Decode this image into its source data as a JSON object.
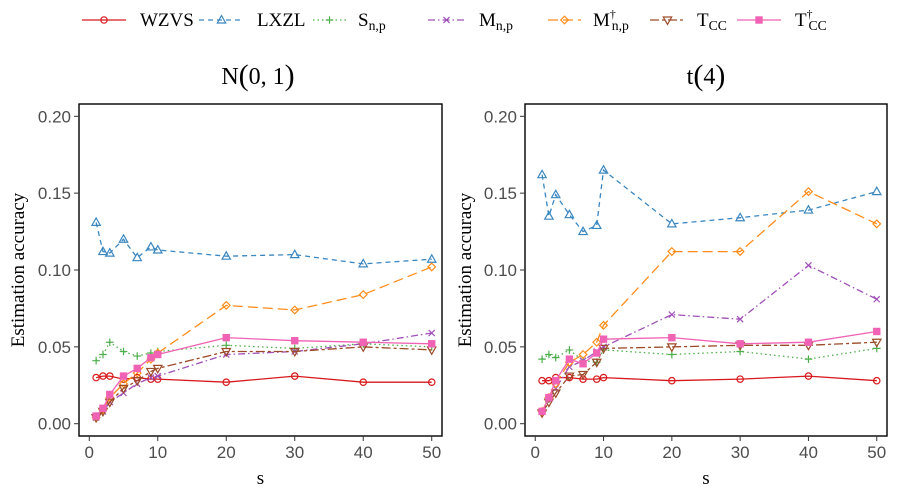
{
  "legend": {
    "placement": "top",
    "items": [
      {
        "base": "WZVS",
        "sub": "",
        "sup": "",
        "color": "#d7191c",
        "marker": "circle",
        "dash": "solid"
      },
      {
        "base": "LXZL",
        "sub": "",
        "sup": "",
        "color": "#3a87c0",
        "marker": "triangle",
        "dash": "dashed"
      },
      {
        "base": "S",
        "sub": "n,p",
        "sup": "",
        "color": "#4daf4a",
        "marker": "plus",
        "dash": "dotted"
      },
      {
        "base": "M",
        "sub": "n,p",
        "sup": "",
        "color": "#a050b8",
        "marker": "cross",
        "dash": "dashdot"
      },
      {
        "base": "M",
        "sub": "n,p",
        "sup": "†",
        "color": "#ff8c1a",
        "marker": "diamond",
        "dash": "longdash"
      },
      {
        "base": "T",
        "sub": "CC",
        "sup": "",
        "color": "#9c4a28",
        "marker": "triangle-down",
        "dash": "twodash"
      },
      {
        "base": "T",
        "sub": "CC",
        "sup": "†",
        "color": "#f062b4",
        "marker": "square",
        "dash": "solid"
      }
    ]
  },
  "chart_data": [
    {
      "type": "line",
      "title": "N(0, 1)",
      "title_parts": {
        "pre": "N",
        "open": "(",
        "inner": "0, 1",
        "close": ")"
      },
      "xlabel": "s",
      "ylabel": "Estimation accuracy",
      "xlim": [
        -1.5,
        51.5
      ],
      "ylim": [
        -0.008,
        0.208
      ],
      "xticks": [
        0,
        10,
        20,
        30,
        40,
        50
      ],
      "yticks": [
        0.0,
        0.05,
        0.1,
        0.15,
        0.2
      ],
      "ytick_labels": [
        "0.00",
        "0.05",
        "0.10",
        "0.15",
        "0.20"
      ],
      "grid": false,
      "x": [
        1,
        2,
        3,
        5,
        7,
        9,
        10,
        20,
        30,
        40,
        50
      ],
      "series": [
        {
          "name": "WZVS",
          "values": [
            0.03,
            0.031,
            0.031,
            0.029,
            0.03,
            0.029,
            0.029,
            0.027,
            0.031,
            0.027,
            0.027
          ]
        },
        {
          "name": "LXZL",
          "values": [
            0.131,
            0.112,
            0.111,
            0.12,
            0.108,
            0.115,
            0.113,
            0.109,
            0.11,
            0.104,
            0.107
          ]
        },
        {
          "name": "S_n,p",
          "values": [
            0.041,
            0.045,
            0.053,
            0.047,
            0.044,
            0.046,
            0.047,
            0.051,
            0.049,
            0.052,
            0.05
          ]
        },
        {
          "name": "M_n,p",
          "values": [
            0.004,
            0.008,
            0.014,
            0.02,
            0.026,
            0.03,
            0.031,
            0.045,
            0.047,
            0.052,
            0.059
          ]
        },
        {
          "name": "M†_n,p",
          "values": [
            0.004,
            0.009,
            0.017,
            0.026,
            0.033,
            0.042,
            0.046,
            0.077,
            0.074,
            0.084,
            0.102
          ]
        },
        {
          "name": "T_CC",
          "values": [
            0.004,
            0.008,
            0.014,
            0.023,
            0.028,
            0.034,
            0.036,
            0.047,
            0.047,
            0.05,
            0.048
          ]
        },
        {
          "name": "T†_CC",
          "values": [
            0.005,
            0.01,
            0.019,
            0.031,
            0.036,
            0.043,
            0.045,
            0.056,
            0.054,
            0.053,
            0.052
          ]
        }
      ]
    },
    {
      "type": "line",
      "title": "t(4)",
      "title_parts": {
        "pre": "t",
        "open": "(",
        "inner": "4",
        "close": ")"
      },
      "xlabel": "s",
      "ylabel": "Estimation accuracy",
      "xlim": [
        -1.5,
        51.5
      ],
      "ylim": [
        -0.008,
        0.208
      ],
      "xticks": [
        0,
        10,
        20,
        30,
        40,
        50
      ],
      "yticks": [
        0.0,
        0.05,
        0.1,
        0.15,
        0.2
      ],
      "ytick_labels": [
        "0.00",
        "0.05",
        "0.10",
        "0.15",
        "0.20"
      ],
      "grid": false,
      "x": [
        1,
        2,
        3,
        5,
        7,
        9,
        10,
        20,
        30,
        40,
        50
      ],
      "series": [
        {
          "name": "WZVS",
          "values": [
            0.028,
            0.028,
            0.03,
            0.03,
            0.029,
            0.029,
            0.03,
            0.028,
            0.029,
            0.031,
            0.028
          ]
        },
        {
          "name": "LXZL",
          "values": [
            0.162,
            0.135,
            0.149,
            0.136,
            0.125,
            0.129,
            0.165,
            0.13,
            0.134,
            0.139,
            0.151
          ]
        },
        {
          "name": "S_n,p",
          "values": [
            0.042,
            0.045,
            0.043,
            0.048,
            0.041,
            0.04,
            0.048,
            0.045,
            0.047,
            0.042,
            0.049
          ]
        },
        {
          "name": "M_n,p",
          "values": [
            0.008,
            0.016,
            0.023,
            0.037,
            0.041,
            0.047,
            0.05,
            0.071,
            0.068,
            0.103,
            0.081
          ]
        },
        {
          "name": "M†_n,p",
          "values": [
            0.008,
            0.017,
            0.026,
            0.04,
            0.045,
            0.053,
            0.064,
            0.112,
            0.112,
            0.151,
            0.13
          ]
        },
        {
          "name": "T_CC",
          "values": [
            0.007,
            0.014,
            0.02,
            0.031,
            0.032,
            0.04,
            0.049,
            0.05,
            0.051,
            0.051,
            0.053
          ]
        },
        {
          "name": "T†_CC",
          "values": [
            0.008,
            0.017,
            0.028,
            0.042,
            0.039,
            0.046,
            0.055,
            0.056,
            0.052,
            0.053,
            0.06
          ]
        }
      ]
    }
  ]
}
